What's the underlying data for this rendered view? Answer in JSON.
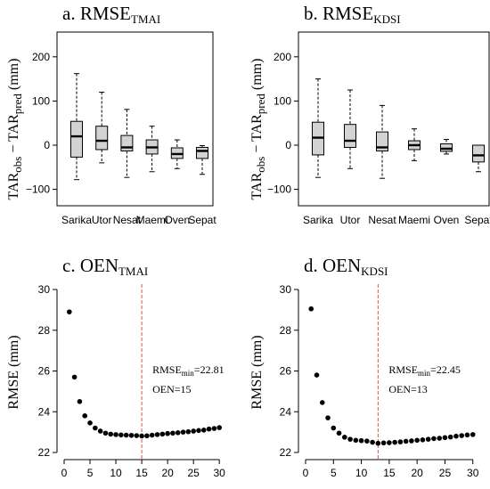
{
  "chart_data": [
    {
      "type": "box",
      "title": "a. RMSE",
      "title_sub": "TMAI",
      "ylabel": "TAR",
      "ylabel_sub1": "obs",
      "ylabel_mid": " − TAR",
      "ylabel_sub2": "pred",
      "ylabel_unit": " (mm)",
      "ylim": [
        -125,
        250
      ],
      "yticks": [
        -100,
        0,
        100,
        200
      ],
      "yticklabels": [
        "−100",
        "0",
        "100",
        "200"
      ],
      "categories": [
        "Sarika",
        "Utor",
        "Nesat",
        "Maemi",
        "Oven",
        "Sepat"
      ],
      "boxes": [
        {
          "min": -78,
          "q1": -27,
          "median": 20,
          "q3": 54,
          "max": 162
        },
        {
          "min": -40,
          "q1": -10,
          "median": 10,
          "q3": 43,
          "max": 120
        },
        {
          "min": -73,
          "q1": -13,
          "median": -5,
          "q3": 22,
          "max": 81
        },
        {
          "min": -60,
          "q1": -20,
          "median": -5,
          "q3": 12,
          "max": 43
        },
        {
          "min": -53,
          "q1": -30,
          "median": -20,
          "q3": -6,
          "max": 12
        },
        {
          "min": -66,
          "q1": -30,
          "median": -13,
          "q3": -5,
          "max": -1
        }
      ]
    },
    {
      "type": "box",
      "title": "b. RMSE",
      "title_sub": "KDSI",
      "ylabel": "TAR",
      "ylabel_sub1": "obs",
      "ylabel_mid": " − TAR",
      "ylabel_sub2": "pred",
      "ylabel_unit": " (mm)",
      "ylim": [
        -125,
        250
      ],
      "yticks": [
        -100,
        0,
        100,
        200
      ],
      "yticklabels": [
        "−100",
        "0",
        "100",
        "200"
      ],
      "categories": [
        "Sarika",
        "Utor",
        "Nesat",
        "Maemi",
        "Oven",
        "Sepat"
      ],
      "boxes": [
        {
          "min": -73,
          "q1": -22,
          "median": 17,
          "q3": 52,
          "max": 150
        },
        {
          "min": -53,
          "q1": -5,
          "median": 10,
          "q3": 47,
          "max": 125
        },
        {
          "min": -75,
          "q1": -13,
          "median": -5,
          "q3": 30,
          "max": 90
        },
        {
          "min": -35,
          "q1": -10,
          "median": 0,
          "q3": 10,
          "max": 37
        },
        {
          "min": -20,
          "q1": -14,
          "median": -8,
          "q3": 3,
          "max": 13
        },
        {
          "min": -60,
          "q1": -38,
          "median": -23,
          "q3": 0,
          "max": 0
        }
      ]
    },
    {
      "type": "scatter",
      "title": "c. OEN",
      "title_sub": "TMAI",
      "ylabel": "RMSE (mm)",
      "xlim": [
        0,
        31
      ],
      "ylim": [
        22,
        30
      ],
      "xticks": [
        0,
        5,
        10,
        15,
        20,
        25,
        30
      ],
      "yticks": [
        22,
        24,
        26,
        28,
        30
      ],
      "x": [
        1,
        2,
        3,
        4,
        5,
        6,
        7,
        8,
        9,
        10,
        11,
        12,
        13,
        14,
        15,
        16,
        17,
        18,
        19,
        20,
        21,
        22,
        23,
        24,
        25,
        26,
        27,
        28,
        29,
        30
      ],
      "y": [
        28.9,
        25.7,
        24.5,
        23.8,
        23.45,
        23.2,
        23.05,
        22.95,
        22.9,
        22.88,
        22.86,
        22.85,
        22.84,
        22.83,
        22.81,
        22.82,
        22.85,
        22.88,
        22.9,
        22.93,
        22.95,
        22.97,
        23.0,
        23.02,
        23.05,
        23.08,
        23.1,
        23.15,
        23.18,
        23.22
      ],
      "vline_x": 15,
      "annotation_rmse_prefix": "RMSE",
      "annotation_rmse_sub": "min",
      "annotation_rmse_value": "=22.81",
      "annotation_oen": "OEN=15"
    },
    {
      "type": "scatter",
      "title": "d. OEN",
      "title_sub": "KDSI",
      "ylabel": "RMSE (mm)",
      "xlim": [
        0,
        31
      ],
      "ylim": [
        22,
        30
      ],
      "xticks": [
        0,
        5,
        10,
        15,
        20,
        25,
        30
      ],
      "yticks": [
        22,
        24,
        26,
        28,
        30
      ],
      "x": [
        1,
        2,
        3,
        4,
        5,
        6,
        7,
        8,
        9,
        10,
        11,
        12,
        13,
        14,
        15,
        16,
        17,
        18,
        19,
        20,
        21,
        22,
        23,
        24,
        25,
        26,
        27,
        28,
        29,
        30
      ],
      "y": [
        29.05,
        25.8,
        24.45,
        23.7,
        23.2,
        22.95,
        22.75,
        22.65,
        22.6,
        22.58,
        22.56,
        22.5,
        22.45,
        22.47,
        22.48,
        22.5,
        22.52,
        22.55,
        22.57,
        22.6,
        22.62,
        22.65,
        22.68,
        22.7,
        22.73,
        22.76,
        22.8,
        22.83,
        22.86,
        22.88
      ],
      "vline_x": 13,
      "annotation_rmse_prefix": "RMSE",
      "annotation_rmse_sub": "min",
      "annotation_rmse_value": "=22.45",
      "annotation_oen": "OEN=13"
    }
  ],
  "colors": {
    "box_fill": "#d3d3d3",
    "axis": "#000000",
    "vline": "#d9534f",
    "point": "#000000"
  }
}
